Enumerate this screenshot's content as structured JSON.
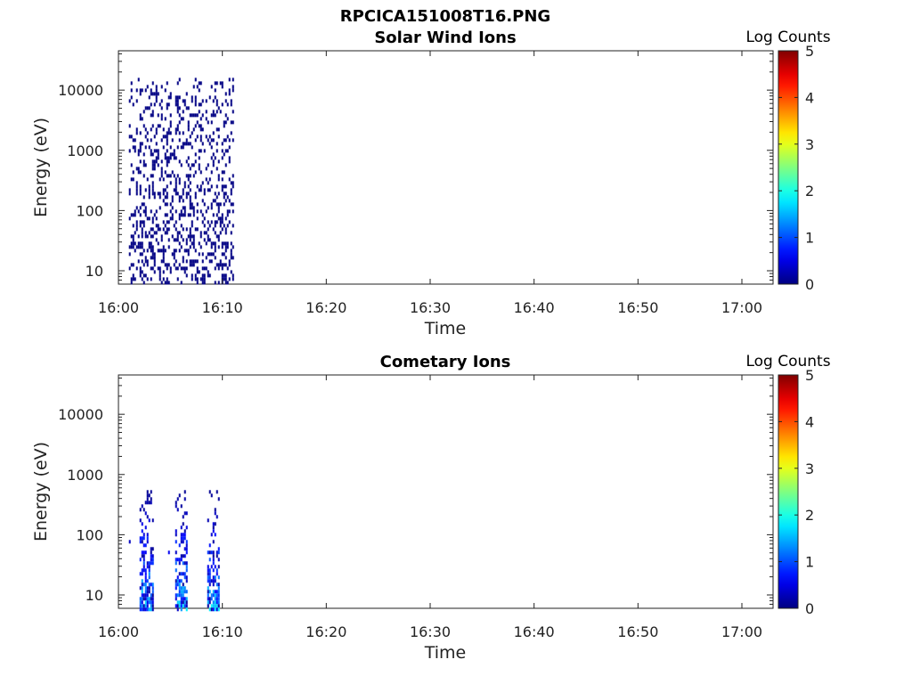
{
  "figure": {
    "title": "RPCICA151008T16.PNG"
  },
  "chart_data": [
    {
      "type": "heatmap",
      "title": "Solar Wind Ions",
      "xlabel": "Time",
      "ylabel": "Energy (eV)",
      "x_ticks": [
        "16:00",
        "16:10",
        "16:20",
        "16:30",
        "16:40",
        "16:50",
        "17:00"
      ],
      "x_range": [
        "16:00",
        "17:03"
      ],
      "y_scale": "log",
      "y_ticks": [
        "10",
        "100",
        "1000",
        "10000"
      ],
      "y_range": [
        6,
        45000
      ],
      "colorbar": {
        "label": "Log Counts",
        "ticks": [
          "0",
          "1",
          "2",
          "3",
          "4",
          "5"
        ],
        "range": [
          0,
          5
        ],
        "colormap": "jet"
      },
      "data_extent": {
        "time_start": "16:01",
        "time_end": "16:11",
        "energy_min": 6,
        "energy_max": 16000,
        "max_log_counts": 0.1
      }
    },
    {
      "type": "heatmap",
      "title": "Cometary Ions",
      "xlabel": "Time",
      "ylabel": "Energy (eV)",
      "x_ticks": [
        "16:00",
        "16:10",
        "16:20",
        "16:30",
        "16:40",
        "16:50",
        "17:00"
      ],
      "x_range": [
        "16:00",
        "17:03"
      ],
      "y_scale": "log",
      "y_ticks": [
        "10",
        "100",
        "1000",
        "10000"
      ],
      "y_range": [
        6,
        45000
      ],
      "colorbar": {
        "label": "Log Counts",
        "ticks": [
          "0",
          "1",
          "2",
          "3",
          "4",
          "5"
        ],
        "range": [
          0,
          5
        ],
        "colormap": "jet"
      },
      "data_extent": {
        "time_start": "16:01",
        "time_end": "16:10",
        "energy_min": 6,
        "energy_max": 550,
        "max_log_counts": 1.8
      }
    }
  ]
}
